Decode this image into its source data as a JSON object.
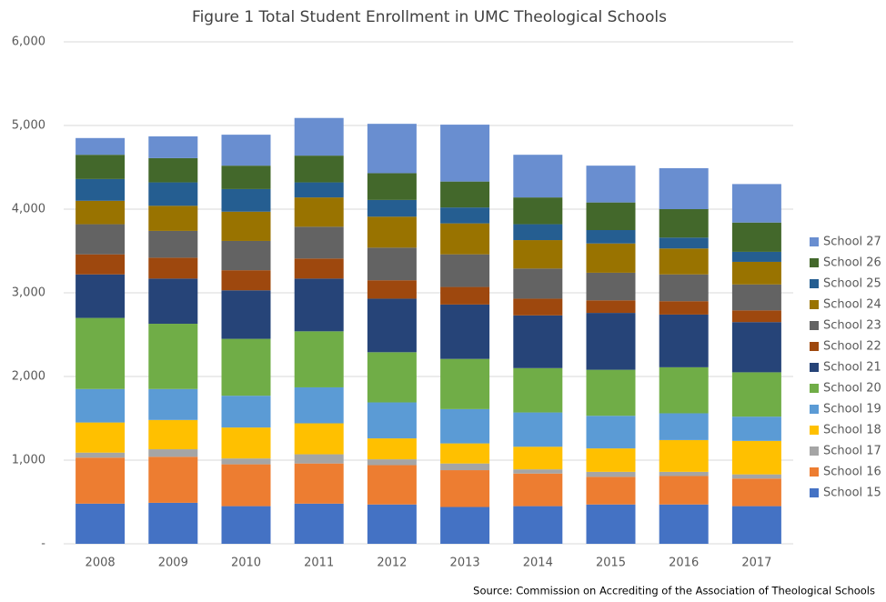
{
  "chart_data": {
    "type": "stacked_bar",
    "title": "Figure 1  Total Student Enrollment in UMC Theological Schools",
    "source": "Source: Commission on Accrediting of the Association of Theological Schools",
    "categories": [
      "2008",
      "2009",
      "2010",
      "2011",
      "2012",
      "2013",
      "2014",
      "2015",
      "2016",
      "2017"
    ],
    "ylim": [
      0,
      6000
    ],
    "yticks": [
      {
        "value": 0,
        "label": "-"
      },
      {
        "value": 1000,
        "label": "1,000"
      },
      {
        "value": 2000,
        "label": "2,000"
      },
      {
        "value": 3000,
        "label": "3,000"
      },
      {
        "value": 4000,
        "label": "4,000"
      },
      {
        "value": 5000,
        "label": "5,000"
      },
      {
        "value": 6000,
        "label": "6,000"
      }
    ],
    "grid": true,
    "legend": "right",
    "series": [
      {
        "name": "School 15",
        "color": "#4472c4",
        "values": [
          480,
          490,
          450,
          480,
          470,
          440,
          450,
          470,
          470,
          450
        ]
      },
      {
        "name": "School 16",
        "color": "#ed7d31",
        "values": [
          550,
          550,
          500,
          480,
          470,
          440,
          390,
          330,
          340,
          330
        ]
      },
      {
        "name": "School 17",
        "color": "#a5a5a5",
        "values": [
          60,
          90,
          70,
          110,
          70,
          80,
          50,
          60,
          50,
          50
        ]
      },
      {
        "name": "School 18",
        "color": "#ffc000",
        "values": [
          360,
          350,
          370,
          370,
          250,
          240,
          270,
          280,
          380,
          400
        ]
      },
      {
        "name": "School 19",
        "color": "#5b9bd5",
        "values": [
          400,
          370,
          380,
          430,
          430,
          410,
          410,
          390,
          320,
          290
        ]
      },
      {
        "name": "School 20",
        "color": "#70ad47",
        "values": [
          850,
          780,
          680,
          670,
          600,
          600,
          530,
          550,
          550,
          530
        ]
      },
      {
        "name": "School 21",
        "color": "#264478",
        "values": [
          520,
          540,
          580,
          630,
          640,
          650,
          630,
          680,
          630,
          600
        ]
      },
      {
        "name": "School 22",
        "color": "#9e480e",
        "values": [
          240,
          250,
          240,
          240,
          220,
          210,
          200,
          150,
          160,
          140
        ]
      },
      {
        "name": "School 23",
        "color": "#636363",
        "values": [
          360,
          320,
          350,
          380,
          390,
          390,
          360,
          330,
          320,
          310
        ]
      },
      {
        "name": "School 24",
        "color": "#997300",
        "values": [
          280,
          300,
          350,
          350,
          370,
          370,
          340,
          350,
          310,
          270
        ]
      },
      {
        "name": "School 25",
        "color": "#255e91",
        "values": [
          260,
          280,
          270,
          180,
          200,
          190,
          190,
          160,
          130,
          120
        ]
      },
      {
        "name": "School 26",
        "color": "#43682b",
        "values": [
          290,
          290,
          280,
          320,
          320,
          310,
          320,
          330,
          340,
          350
        ]
      },
      {
        "name": "School 27",
        "color": "#698ed0",
        "values": [
          200,
          260,
          370,
          450,
          590,
          680,
          510,
          440,
          490,
          460
        ]
      }
    ]
  }
}
